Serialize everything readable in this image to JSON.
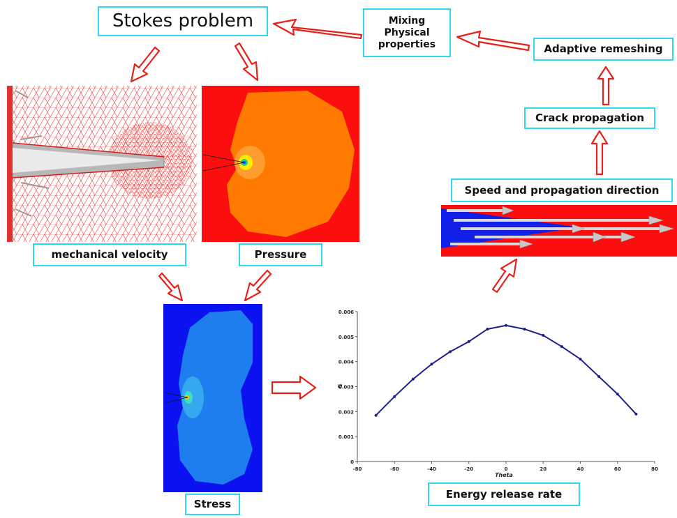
{
  "labels": {
    "stokes": "Stokes problem",
    "mixing": "Mixing\nPhysical\nproperties",
    "remeshing": "Adaptive remeshing",
    "crack": "Crack propagation",
    "speed": "Speed and propagation direction",
    "velocity": "mechanical velocity",
    "pressure": "Pressure",
    "stress": "Stress",
    "energy": "Energy release rate"
  },
  "colors": {
    "label_border": "#2fd8ee",
    "arrow_outline": "#e8201a",
    "pressure_bg": "#fa0e0e",
    "pressure_field": "#ff7a00",
    "stress_bg": "#0b12f0",
    "stress_field": "#1e7ef0",
    "curve": "#1d1f8c"
  },
  "chart_data": {
    "type": "scatter",
    "xlabel": "Theta",
    "ylabel": "G",
    "xlim": [
      -80,
      80
    ],
    "ylim": [
      0,
      0.006
    ],
    "x_ticks": [
      "-80",
      "-60",
      "-40",
      "-20",
      "0",
      "20",
      "40",
      "60",
      "80"
    ],
    "y_ticks": [
      "0",
      "0.001",
      "0.002",
      "0.003",
      "0.004",
      "0.005",
      "0.006"
    ],
    "series": [
      {
        "x": [
          -70,
          -60,
          -50,
          -40,
          -30,
          -20,
          -10,
          0,
          10,
          20,
          30,
          40,
          50,
          60,
          70
        ],
        "values": [
          0.00185,
          0.0026,
          0.0033,
          0.0039,
          0.0044,
          0.0048,
          0.0053,
          0.00545,
          0.0053,
          0.00505,
          0.0046,
          0.0041,
          0.0034,
          0.0027,
          0.0019
        ]
      }
    ]
  }
}
